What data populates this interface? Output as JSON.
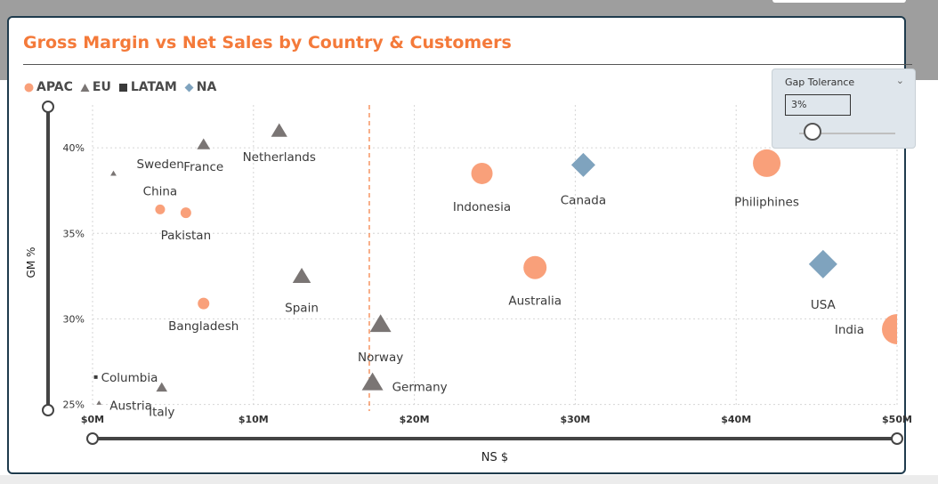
{
  "chart_data": {
    "type": "scatter",
    "title": "Gross Margin vs Net Sales by Country & Customers",
    "xlabel": "NS $",
    "ylabel": "GM %",
    "x_ticks": [
      "$0M",
      "$10M",
      "$20M",
      "$30M",
      "$40M",
      "$50M"
    ],
    "y_ticks": [
      "25%",
      "30%",
      "35%",
      "40%"
    ],
    "xlim": [
      0,
      50
    ],
    "ylim": [
      24.2,
      42.5
    ],
    "x_unit": "$M",
    "y_unit": "%",
    "grid": true,
    "legend": [
      {
        "name": "APAC",
        "shape": "circle",
        "color": "#f9a07a"
      },
      {
        "name": "EU",
        "shape": "triangle",
        "color": "#7a7574"
      },
      {
        "name": "LATAM",
        "shape": "square",
        "color": "#3a3a3a"
      },
      {
        "name": "NA",
        "shape": "diamond",
        "color": "#7fa3be"
      }
    ],
    "reference_line": {
      "axis": "x",
      "value": 17.2,
      "color": "#f47a3a",
      "style": "dashed"
    },
    "points": [
      {
        "label": "Sweden",
        "region": "EU",
        "x": 1.3,
        "y": 38.5,
        "size": 6
      },
      {
        "label": "France",
        "region": "EU",
        "x": 6.9,
        "y": 40.2,
        "size": 13
      },
      {
        "label": "Netherlands",
        "region": "EU",
        "x": 11.6,
        "y": 41.0,
        "size": 16
      },
      {
        "label": "China",
        "region": "APAC",
        "x": 4.2,
        "y": 36.4,
        "size": 11
      },
      {
        "label": "Pakistan",
        "region": "APAC",
        "x": 5.8,
        "y": 36.2,
        "size": 12
      },
      {
        "label": "Bangladesh",
        "region": "APAC",
        "x": 6.9,
        "y": 30.9,
        "size": 13
      },
      {
        "label": "Spain",
        "region": "EU",
        "x": 13.0,
        "y": 32.5,
        "size": 18
      },
      {
        "label": "Norway",
        "region": "EU",
        "x": 17.9,
        "y": 29.7,
        "size": 21
      },
      {
        "label": "Germany",
        "region": "EU",
        "x": 17.4,
        "y": 26.3,
        "size": 21
      },
      {
        "label": "Columbia",
        "region": "LATAM",
        "x": 0.2,
        "y": 26.6,
        "size": 4
      },
      {
        "label": "Austria",
        "region": "EU",
        "x": 0.4,
        "y": 25.1,
        "size": 5
      },
      {
        "label": "Italy",
        "region": "EU",
        "x": 4.3,
        "y": 26.0,
        "size": 11
      },
      {
        "label": "Indonesia",
        "region": "APAC",
        "x": 24.2,
        "y": 38.5,
        "size": 24
      },
      {
        "label": "Canada",
        "region": "NA",
        "x": 30.5,
        "y": 39.0,
        "size": 27
      },
      {
        "label": "Philiphines",
        "region": "APAC",
        "x": 41.9,
        "y": 39.1,
        "size": 31
      },
      {
        "label": "Australia",
        "region": "APAC",
        "x": 27.5,
        "y": 33.0,
        "size": 26
      },
      {
        "label": "USA",
        "region": "NA",
        "x": 45.4,
        "y": 33.2,
        "size": 32
      },
      {
        "label": "India",
        "region": "APAC",
        "x": 50.0,
        "y": 29.4,
        "size": 34
      }
    ]
  },
  "slicer": {
    "title": "Gap Tolerance",
    "value": "3%",
    "level_percent": 8
  }
}
